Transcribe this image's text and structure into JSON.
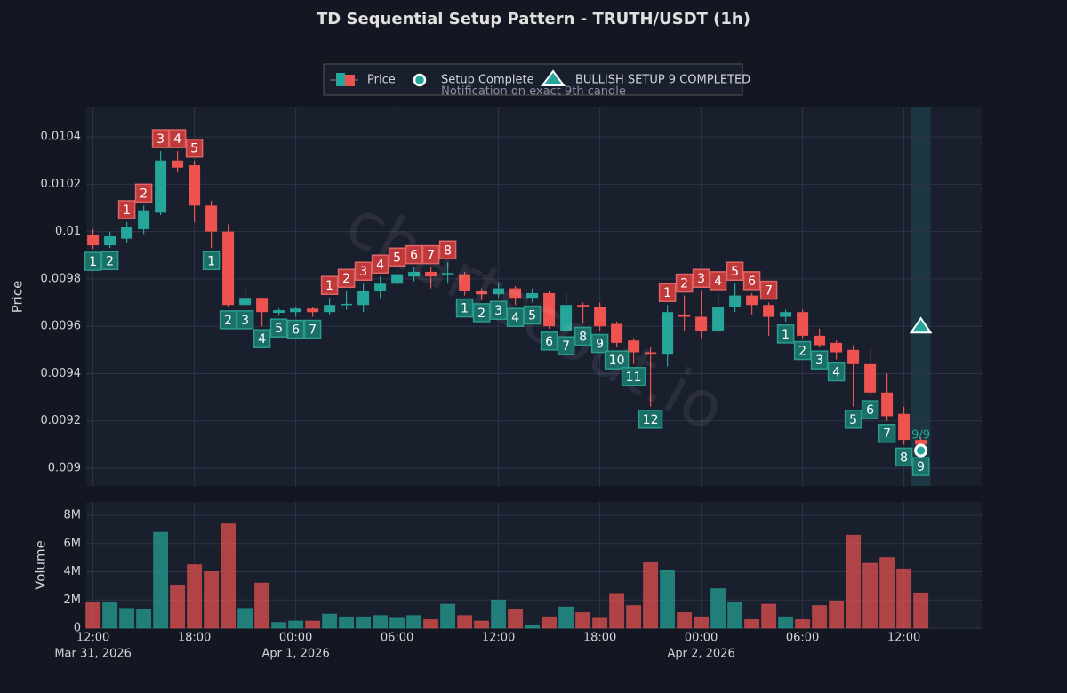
{
  "chart_data": {
    "type": "candlestick",
    "title": "TD Sequential Setup Pattern - TRUTH/USDT (1h)",
    "ylabel": "Price",
    "legend": [
      "Price",
      "Setup Complete",
      "BULLISH SETUP 9 COMPLETED"
    ],
    "note": "Notification on exact 9th candle",
    "watermark": "chartscout.io",
    "up_color": "#26a69a",
    "down_color": "#ef5350",
    "grid": true,
    "categories": [
      null,
      null,
      null,
      null,
      null,
      null,
      null,
      null,
      null,
      null,
      null,
      null,
      null,
      null,
      null,
      null,
      null,
      null,
      null,
      null,
      null,
      null,
      null,
      null,
      null,
      null,
      null,
      null,
      null,
      null,
      null,
      null,
      null,
      null,
      null,
      null,
      null,
      null,
      null,
      null,
      null,
      null,
      null,
      null,
      null,
      null,
      null,
      null,
      null,
      null
    ],
    "xlim": [
      -0.4,
      52.6
    ],
    "xticks": [
      {
        "value": 0,
        "label": "12:00",
        "sublabel": "Mar 31, 2026"
      },
      {
        "value": 6,
        "label": "18:00"
      },
      {
        "value": 12,
        "label": "00:00",
        "sublabel": "Apr 1, 2026"
      },
      {
        "value": 18,
        "label": "06:00"
      },
      {
        "value": 24,
        "label": "12:00"
      },
      {
        "value": 30,
        "label": "18:00"
      },
      {
        "value": 36,
        "label": "00:00",
        "sublabel": "Apr 2, 2026"
      },
      {
        "value": 42,
        "label": "06:00"
      },
      {
        "value": 48,
        "label": "12:00"
      }
    ],
    "ylim": [
      0.008925,
      0.010528
    ],
    "yticks": [
      0.009,
      0.0092,
      0.0094,
      0.0096,
      0.0098,
      0.01,
      0.0102,
      0.0104
    ],
    "open": [
      0.009987,
      0.009942,
      0.00997,
      0.01001,
      0.01008,
      0.0103,
      0.01028,
      0.01011,
      0.01,
      0.00969,
      0.00972,
      0.009657,
      0.00966,
      0.009675,
      0.00966,
      0.00969,
      0.00969,
      0.00975,
      0.00978,
      0.00981,
      0.00983,
      0.00982,
      0.00982,
      0.00975,
      0.009735,
      0.00976,
      0.00972,
      0.00974,
      0.00958,
      0.00969,
      0.00968,
      0.00961,
      0.00954,
      0.00949,
      0.00948,
      0.00965,
      0.00964,
      0.00958,
      0.00968,
      0.00973,
      0.00969,
      0.00964,
      0.00966,
      0.00956,
      0.00953,
      0.0095,
      0.00944,
      0.00932,
      0.00923,
      0.00912
    ],
    "high": [
      0.01001,
      0.01,
      0.01004,
      0.01011,
      0.01034,
      0.01034,
      0.0103,
      0.01013,
      0.01003,
      0.00977,
      0.00972,
      0.009675,
      0.00968,
      0.00968,
      0.00972,
      0.00975,
      0.00978,
      0.00981,
      0.00984,
      0.00985,
      0.00985,
      0.00987,
      0.00983,
      0.00976,
      0.00978,
      0.00977,
      0.00976,
      0.00975,
      0.00974,
      0.0097,
      0.0097,
      0.00962,
      0.00955,
      0.00951,
      0.00969,
      0.00973,
      0.00975,
      0.00974,
      0.00978,
      0.00974,
      0.0097,
      0.00967,
      0.00967,
      0.00959,
      0.00954,
      0.00952,
      0.00951,
      0.0094,
      0.00926,
      0.00913
    ],
    "low": [
      0.009927,
      0.00993,
      0.00995,
      0.00999,
      0.01007,
      0.01025,
      0.01004,
      0.00993,
      0.00968,
      0.00968,
      0.0096,
      0.009645,
      0.00964,
      0.00964,
      0.00965,
      0.00967,
      0.00966,
      0.00972,
      0.00977,
      0.00979,
      0.00976,
      0.00978,
      0.00973,
      0.00971,
      0.00972,
      0.00969,
      0.0097,
      0.00959,
      0.00957,
      0.00961,
      0.00958,
      0.00951,
      0.00944,
      0.00926,
      0.00943,
      0.00958,
      0.00955,
      0.00957,
      0.00966,
      0.00965,
      0.00956,
      0.00962,
      0.00955,
      0.00951,
      0.00946,
      0.00926,
      0.0093,
      0.0092,
      0.0091,
      0.00906
    ],
    "close": [
      0.009942,
      0.00998,
      0.01002,
      0.01009,
      0.0103,
      0.01027,
      0.01011,
      0.01,
      0.00969,
      0.00972,
      0.00966,
      0.009668,
      0.009675,
      0.00966,
      0.00969,
      0.009695,
      0.00975,
      0.00978,
      0.00982,
      0.00983,
      0.00981,
      0.009825,
      0.00975,
      0.009735,
      0.00976,
      0.00972,
      0.00974,
      0.0096,
      0.00969,
      0.00968,
      0.0096,
      0.00953,
      0.00949,
      0.00948,
      0.00966,
      0.00964,
      0.00958,
      0.00968,
      0.00973,
      0.00969,
      0.00964,
      0.00966,
      0.00956,
      0.00952,
      0.00949,
      0.00944,
      0.00932,
      0.00922,
      0.00912,
      0.0091
    ],
    "td_labels": [
      {
        "count": 1,
        "color": "#1a6f66"
      },
      {
        "count": 2,
        "color": "#1a6f66"
      },
      {
        "count": 1,
        "color": "#c0393b"
      },
      {
        "count": 2,
        "color": "#c0393b"
      },
      {
        "count": 3,
        "color": "#c0393b"
      },
      {
        "count": 4,
        "color": "#c0393b"
      },
      {
        "count": 5,
        "color": "#c0393b"
      },
      {
        "count": 1,
        "color": "#1a6f66"
      },
      {
        "count": 2,
        "color": "#1a6f66"
      },
      {
        "count": 3,
        "color": "#1a6f66"
      },
      {
        "count": 4,
        "color": "#1a6f66"
      },
      {
        "count": 5,
        "color": "#1a6f66"
      },
      {
        "count": 6,
        "color": "#1a6f66"
      },
      {
        "count": 7,
        "color": "#1a6f66"
      },
      {
        "count": 1,
        "color": "#c0393b"
      },
      {
        "count": 2,
        "color": "#c0393b"
      },
      {
        "count": 3,
        "color": "#c0393b"
      },
      {
        "count": 4,
        "color": "#c0393b"
      },
      {
        "count": 5,
        "color": "#c0393b"
      },
      {
        "count": 6,
        "color": "#c0393b"
      },
      {
        "count": 7,
        "color": "#c0393b"
      },
      {
        "count": 8,
        "color": "#c0393b"
      },
      {
        "count": 1,
        "color": "#1a6f66"
      },
      {
        "count": 2,
        "color": "#1a6f66"
      },
      {
        "count": 3,
        "color": "#1a6f66"
      },
      {
        "count": 4,
        "color": "#1a6f66"
      },
      {
        "count": 5,
        "color": "#1a6f66"
      },
      {
        "count": 6,
        "color": "#1a6f66"
      },
      {
        "count": 7,
        "color": "#1a6f66"
      },
      {
        "count": 8,
        "color": "#1a6f66"
      },
      {
        "count": 9,
        "color": "#1a6f66"
      },
      {
        "count": 10,
        "color": "#1a6f66"
      },
      {
        "count": 11,
        "color": "#1a6f66"
      },
      {
        "count": 12,
        "color": "#1a6f66"
      },
      {
        "count": 1,
        "color": "#c0393b"
      },
      {
        "count": 2,
        "color": "#c0393b"
      },
      {
        "count": 3,
        "color": "#c0393b"
      },
      {
        "count": 4,
        "color": "#c0393b"
      },
      {
        "count": 5,
        "color": "#c0393b"
      },
      {
        "count": 6,
        "color": "#c0393b"
      },
      {
        "count": 7,
        "color": "#c0393b"
      },
      {
        "count": 1,
        "color": "#1a6f66"
      },
      {
        "count": 2,
        "color": "#1a6f66"
      },
      {
        "count": 3,
        "color": "#1a6f66"
      },
      {
        "count": 4,
        "color": "#1a6f66"
      },
      {
        "count": 5,
        "color": "#1a6f66"
      },
      {
        "count": 6,
        "color": "#1a6f66"
      },
      {
        "count": 7,
        "color": "#1a6f66"
      },
      {
        "count": 8,
        "color": "#1a6f66"
      },
      {
        "count": 9,
        "color": "#1a6f66"
      }
    ],
    "highlight_index": 49,
    "setup_complete": {
      "index": 49,
      "value": 0.009075,
      "label": "9/9",
      "color": "#26a69a"
    },
    "signal": {
      "index": 49,
      "value": 0.0096,
      "color": "#26a69a"
    },
    "volume": {
      "ylabel": "Volume",
      "ylim": [
        0,
        8950000
      ],
      "yticks": [
        0,
        {
          "value": 2000000,
          "label": "2M"
        },
        {
          "value": 4000000,
          "label": "4M"
        },
        {
          "value": 6000000,
          "label": "6M"
        },
        {
          "value": 8000000,
          "label": "8M"
        }
      ],
      "values": [
        1800000,
        1800000,
        1400000,
        1300000,
        6800000,
        3000000,
        4500000,
        4000000,
        7400000,
        1400000,
        3200000,
        400000,
        500000,
        500000,
        1000000,
        800000,
        800000,
        900000,
        700000,
        900000,
        600000,
        1700000,
        900000,
        500000,
        2000000,
        1300000,
        200000,
        800000,
        1500000,
        1100000,
        700000,
        2400000,
        1600000,
        4700000,
        4100000,
        1100000,
        800000,
        2800000,
        1800000,
        600000,
        1700000,
        800000,
        600000,
        1600000,
        1900000,
        6600000,
        4600000,
        5000000,
        4200000,
        2500000
      ]
    }
  }
}
